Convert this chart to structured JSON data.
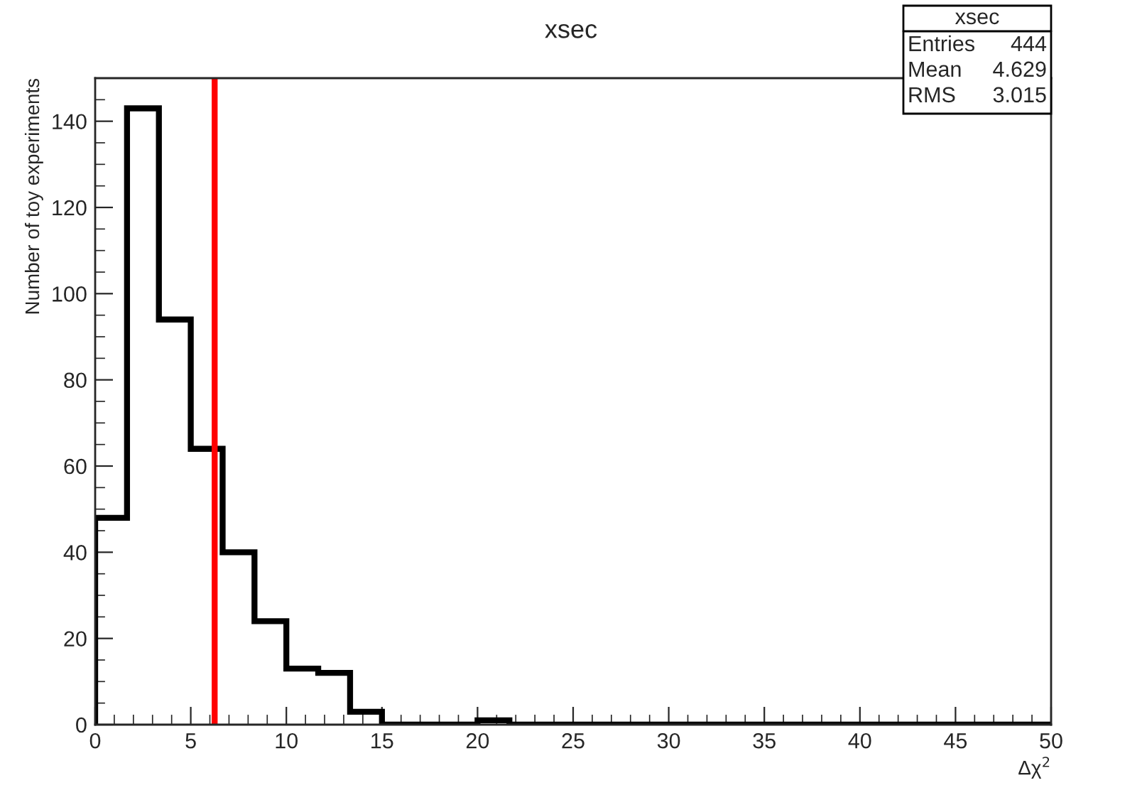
{
  "chart_data": {
    "type": "histogram",
    "title": "xsec",
    "xlabel": "Δχ$^{2}$",
    "ylabel": "Number of toy experiments",
    "bins": [
      0,
      1.6667,
      3.3333,
      5,
      6.6667,
      8.3333,
      10,
      11.6667,
      13.3333,
      15,
      16.6667,
      18.3333,
      20,
      21.6667,
      23.3333,
      25,
      26.6667,
      28.3333,
      30,
      31.6667,
      33.3333,
      35,
      36.6667,
      38.3333,
      40,
      41.6667,
      43.3333,
      45,
      46.6667,
      48.3333,
      50
    ],
    "values": [
      48,
      143,
      94,
      64,
      40,
      24,
      13,
      12,
      3,
      0,
      0,
      0,
      1,
      0,
      0,
      0,
      0,
      0,
      0,
      0,
      0,
      0,
      0,
      0,
      0,
      0,
      0,
      0,
      0,
      0
    ],
    "color": "#000000",
    "xlim": [
      0,
      50
    ],
    "xticks": [
      0,
      5,
      10,
      15,
      20,
      25,
      30,
      35,
      40,
      45,
      50
    ],
    "ylim": [
      0,
      150
    ],
    "yticks": [
      0,
      20,
      40,
      60,
      80,
      100,
      120,
      140
    ],
    "grid": false,
    "ref_lines": [
      {
        "axis": "x",
        "value": 6.25,
        "color": "#ff0000"
      }
    ],
    "annotations": [
      "xsec",
      "Entries",
      "444",
      "Mean",
      "4.629",
      "RMS",
      "3.015"
    ]
  }
}
